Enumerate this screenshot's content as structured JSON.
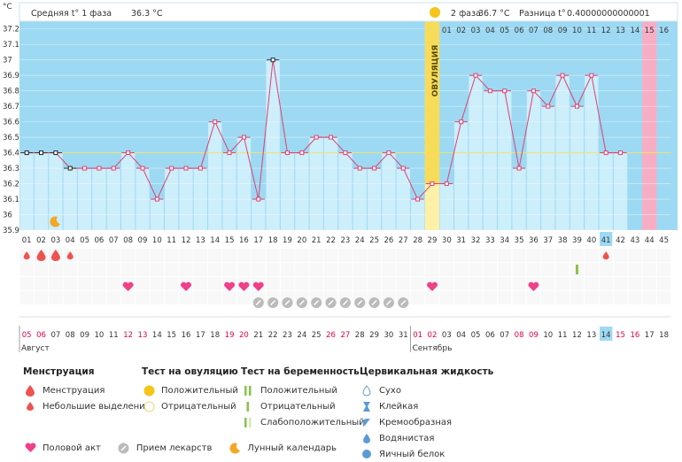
{
  "header": {
    "unit": "°C",
    "phase1_label": "Средняя t° 1 фаза",
    "phase1_value": "36.3 °C",
    "phase2_label": "2 фаза",
    "phase2_value": "36.7 °C",
    "diff_label": "Разница t°",
    "diff_value": "0.40000000000001",
    "ovulation_label": "ОВУЛЯЦИЯ"
  },
  "chart_data": {
    "type": "line",
    "y_ticks": [
      "37.2",
      "37.1",
      "37",
      "36.9",
      "36.8",
      "36.7",
      "36.6",
      "36.5",
      "36.4",
      "36.3",
      "36.2",
      "36.1",
      "36",
      "35.9"
    ],
    "ylim": [
      35.9,
      37.2
    ],
    "coverline": 36.4,
    "ovulation_day": 29,
    "days": [
      "01",
      "02",
      "03",
      "04",
      "05",
      "06",
      "07",
      "08",
      "09",
      "10",
      "11",
      "12",
      "13",
      "14",
      "15",
      "16",
      "17",
      "18",
      "19",
      "20",
      "21",
      "22",
      "23",
      "24",
      "25",
      "26",
      "27",
      "28",
      "29",
      "30",
      "31",
      "32",
      "33",
      "34",
      "35",
      "36",
      "37",
      "38",
      "39",
      "40",
      "41",
      "42",
      "43",
      "44",
      "45"
    ],
    "temps": [
      36.4,
      36.4,
      36.4,
      36.3,
      36.3,
      36.3,
      36.3,
      36.4,
      36.3,
      36.1,
      36.3,
      36.3,
      36.3,
      36.6,
      36.4,
      36.5,
      36.1,
      37.0,
      36.4,
      36.4,
      36.5,
      36.5,
      36.4,
      36.3,
      36.3,
      36.4,
      36.3,
      36.1,
      36.2,
      36.2,
      36.6,
      36.9,
      36.8,
      36.8,
      36.3,
      36.8,
      36.7,
      36.9,
      36.7,
      36.9,
      36.4,
      36.4
    ],
    "excluded_days": [
      1,
      2,
      3,
      4,
      18
    ],
    "phase2_days": [
      "01",
      "02",
      "03",
      "04",
      "05",
      "06",
      "07",
      "08",
      "09",
      "10",
      "11",
      "12",
      "13",
      "14",
      "15",
      "16"
    ],
    "phase2_highlight_day": "15",
    "today_day": 41,
    "menstruation": [
      {
        "day": 1,
        "size": "small"
      },
      {
        "day": 2,
        "size": "large"
      },
      {
        "day": 3,
        "size": "large"
      },
      {
        "day": 4,
        "size": "small"
      },
      {
        "day": 41,
        "size": "small"
      }
    ],
    "test_pregnancy_days": [
      39
    ],
    "intercourse_days": [
      8,
      12,
      15,
      16,
      17,
      29,
      36
    ],
    "medication_days": [
      17,
      18,
      19,
      20,
      21,
      22,
      23,
      24,
      25,
      26,
      27
    ],
    "moon_day": 3,
    "dates": [
      "05",
      "06",
      "07",
      "08",
      "09",
      "10",
      "11",
      "12",
      "13",
      "14",
      "15",
      "16",
      "17",
      "18",
      "19",
      "20",
      "21",
      "22",
      "23",
      "24",
      "25",
      "26",
      "27",
      "28",
      "29",
      "30",
      "31",
      "01",
      "02",
      "03",
      "04",
      "05",
      "06",
      "07",
      "08",
      "09",
      "10",
      "11",
      "12",
      "13",
      "14",
      "15",
      "16",
      "17",
      "18"
    ],
    "weekend_dates": [
      1,
      2,
      8,
      9,
      15,
      16,
      22,
      23,
      28,
      29,
      35,
      36,
      42,
      43
    ],
    "today_date_index": 41,
    "months": [
      {
        "name": "Август",
        "day": 1
      },
      {
        "name": "Сентябрь",
        "day": 28
      }
    ]
  },
  "legend": {
    "menstruation": {
      "title": "Менструация",
      "items": [
        "Менструация",
        "Небольшие выделения"
      ]
    },
    "ovulation_test": {
      "title": "Тест на овуляцию",
      "items": [
        "Положительный",
        "Отрицательный"
      ]
    },
    "pregnancy_test": {
      "title": "Тест на беременность",
      "items": [
        "Положительный",
        "Отрицательный",
        "Слабоположительный"
      ]
    },
    "cervical": {
      "title": "Цервикальная жидкость",
      "items": [
        "Сухо",
        "Клейкая",
        "Кремообразная",
        "Водянистая",
        "Яичный белок"
      ]
    },
    "bottom": [
      "Половой акт",
      "Прием лекарств",
      "Лунный календарь"
    ]
  },
  "colors": {
    "bg": "#9dd9f3",
    "bar": "#cdeefb",
    "line": "#e0406e",
    "ovulation": "#fff0a8",
    "phase2_highlight": "#f7aec4",
    "heart": "#f0408a",
    "drop": "#ef5350",
    "pill": "#bbbbbb",
    "moon": "#f5a623",
    "test_green": "#8bc34a",
    "weekend": "#e6004c"
  }
}
